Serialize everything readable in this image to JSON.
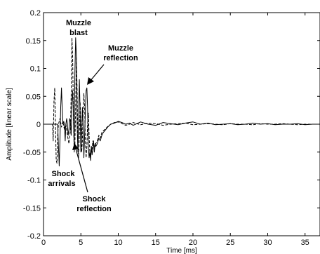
{
  "chart_data": {
    "type": "line",
    "xlabel": "Time [ms]",
    "ylabel": "Amplitude [linear scale]",
    "xlim": [
      0,
      37
    ],
    "ylim": [
      -0.2,
      0.2
    ],
    "x_ticks": [
      0,
      5,
      10,
      15,
      20,
      25,
      30,
      35
    ],
    "y_ticks": [
      0.2,
      0.15,
      0.1,
      0.05,
      0,
      -0.05,
      -0.1,
      -0.15,
      -0.2
    ],
    "x_tick_labels": [
      "0",
      "5",
      "10",
      "15",
      "20",
      "25",
      "30",
      "35"
    ],
    "y_tick_labels": [
      "0.2",
      "0.15",
      "0.1",
      "0.05",
      "0",
      "-0.05",
      "-0.1",
      "-0.15",
      "-0.2"
    ],
    "grid": false,
    "series": [
      {
        "style": "solid",
        "color": "#000000",
        "x": [
          0,
          1.9,
          2.0,
          2.1,
          2.2,
          2.3,
          2.4,
          2.5,
          2.6,
          2.7,
          2.8,
          2.9,
          3.0,
          3.1,
          3.2,
          3.3,
          3.4,
          3.5,
          3.6,
          3.7,
          3.8,
          3.9,
          4.0,
          4.1,
          4.2,
          4.3,
          4.4,
          4.5,
          4.6,
          4.7,
          4.8,
          4.9,
          5.0,
          5.1,
          5.2,
          5.3,
          5.4,
          5.5,
          5.6,
          5.7,
          5.8,
          5.9,
          6.0,
          6.1,
          6.2,
          6.3,
          6.4,
          6.5,
          6.6,
          6.7,
          6.8,
          6.9,
          7.0,
          7.2,
          7.4,
          7.6,
          7.8,
          8.0,
          8.3,
          8.6,
          9.0,
          9.5,
          10.0,
          10.5,
          11.0,
          11.5,
          12.0,
          13.0,
          14.0,
          15.0,
          16.0,
          17.0,
          18.0,
          19.0,
          20.0,
          21.0,
          22.0,
          23.0,
          24.0,
          25.0,
          26.0,
          27.0,
          28.0,
          29.0,
          30.0,
          31.0,
          32.0,
          33.0,
          34.0,
          35.0,
          36.0,
          37.0
        ],
        "y": [
          0,
          0,
          -0.04,
          -0.075,
          -0.03,
          0.03,
          0.065,
          0.03,
          0.0,
          0.005,
          0.0,
          -0.03,
          0.0,
          0.01,
          0.0,
          -0.02,
          -0.01,
          0.01,
          0.005,
          -0.02,
          0.04,
          0.06,
          0.02,
          -0.04,
          0.09,
          0.155,
          0.12,
          0.0,
          -0.05,
          0.01,
          0.08,
          0.02,
          -0.05,
          -0.02,
          0.03,
          0.0,
          -0.06,
          -0.02,
          0.02,
          0.06,
          0.065,
          0.03,
          -0.04,
          -0.06,
          -0.05,
          -0.065,
          -0.04,
          -0.055,
          -0.045,
          -0.03,
          -0.05,
          -0.035,
          -0.04,
          -0.035,
          -0.025,
          -0.03,
          -0.02,
          -0.015,
          -0.01,
          -0.005,
          0.0,
          0.002,
          0.005,
          0.003,
          0.0,
          0.002,
          -0.002,
          0.004,
          0.0,
          -0.002,
          0.003,
          0.001,
          -0.001,
          0.002,
          0.004,
          0.0,
          0.002,
          -0.001,
          0.0,
          0.001,
          -0.001,
          0.0,
          0.002,
          0.0,
          0.001,
          -0.001,
          0.0,
          0.0,
          0.001,
          -0.001,
          0.0,
          0.0
        ]
      },
      {
        "style": "dashed",
        "color": "#000000",
        "x": [
          0,
          1.2,
          1.3,
          1.4,
          1.5,
          1.6,
          1.7,
          1.8,
          1.9,
          2.0,
          2.2,
          2.4,
          2.6,
          2.8,
          3.0,
          3.2,
          3.4,
          3.6,
          3.7,
          3.8,
          3.9,
          4.0,
          4.1,
          4.2,
          4.3,
          4.4,
          4.5,
          4.6,
          4.7,
          4.8,
          4.9,
          5.0,
          5.1,
          5.2,
          5.3,
          5.4,
          5.5,
          5.6,
          5.7,
          5.8,
          5.9,
          6.0,
          6.1,
          6.2,
          6.3,
          6.4,
          6.5,
          6.6,
          6.8,
          7.0,
          7.2,
          7.4,
          7.6,
          7.8,
          8.0,
          8.3,
          8.6,
          9.0,
          9.5,
          10.0,
          10.5,
          11.0,
          11.5,
          12.0,
          13.0,
          14.0,
          15.0,
          16.0,
          17.0,
          18.0,
          19.0,
          20.0,
          21.0,
          22.0,
          23.0,
          24.0,
          25.0,
          26.0,
          27.0,
          28.0,
          29.0,
          30.0,
          31.0,
          32.0,
          33.0,
          34.0,
          35.0,
          36.0,
          37.0
        ],
        "y": [
          0,
          0,
          -0.03,
          0.04,
          0.065,
          0.0,
          -0.065,
          -0.07,
          -0.02,
          0.0,
          0.01,
          -0.005,
          0.005,
          -0.01,
          0.0,
          -0.02,
          -0.035,
          -0.01,
          0.05,
          0.155,
          0.12,
          0.02,
          -0.05,
          -0.04,
          0.03,
          0.12,
          0.06,
          -0.03,
          -0.06,
          -0.02,
          0.04,
          0.0,
          -0.05,
          -0.03,
          0.02,
          0.055,
          0.03,
          -0.03,
          -0.06,
          -0.04,
          0.0,
          0.02,
          -0.02,
          -0.05,
          -0.055,
          -0.04,
          -0.045,
          -0.03,
          -0.04,
          -0.035,
          -0.03,
          -0.02,
          -0.025,
          -0.015,
          -0.012,
          -0.008,
          -0.004,
          0.0,
          0.003,
          0.004,
          0.001,
          -0.002,
          0.0,
          0.003,
          -0.001,
          0.002,
          0.001,
          -0.002,
          0.0,
          0.001,
          0.002,
          -0.001,
          0.0,
          0.001,
          0.0,
          -0.001,
          0.001,
          0.0,
          0.0,
          -0.001,
          0.001,
          0.0,
          0.0,
          0.001,
          0.0,
          -0.001,
          0.0,
          0.0,
          0.0
        ]
      }
    ],
    "annotations": [
      {
        "lines": [
          "Muzzle",
          "blast"
        ],
        "arrow": false
      },
      {
        "lines": [
          "Muzzle",
          "reflection"
        ],
        "arrow": true
      },
      {
        "lines": [
          "Shock",
          "arrivals"
        ],
        "arrow": false
      },
      {
        "lines": [
          "Shock",
          "reflection"
        ],
        "arrow": true
      }
    ]
  }
}
